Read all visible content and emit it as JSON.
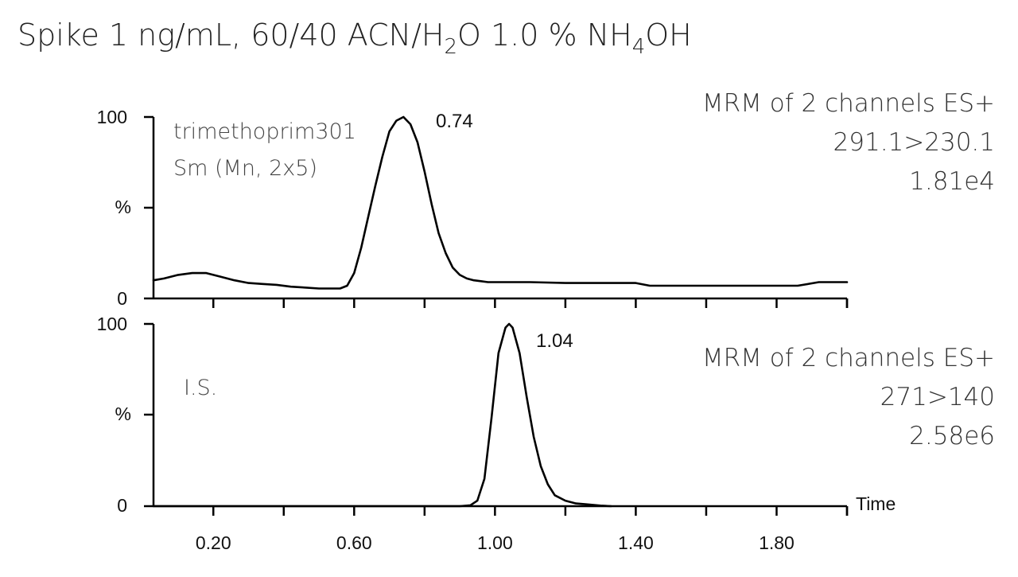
{
  "title": {
    "prefix": "Spike 1 ng/mL, 60/40 ACN/H",
    "sub1": "2",
    "mid": "O 1.0 % NH",
    "sub2": "4",
    "suffix": "OH"
  },
  "x_axis_label": "Time",
  "chart_data": [
    {
      "type": "line",
      "panel": "top",
      "annotation_lines": [
        "trimethoprim301",
        "Sm (Mn, 2x5)"
      ],
      "info_lines": [
        "MRM of 2 channels ES+",
        "291.1>230.1",
        "1.81e4"
      ],
      "y_tick_labels": [
        "100",
        "%",
        "0"
      ],
      "peak_label": "0.74",
      "peak_x": 0.74,
      "xlim": [
        0.03,
        2.0
      ],
      "ylim": [
        0,
        100
      ],
      "x_ticks": [
        0.2,
        0.6,
        1.0,
        1.4,
        1.8
      ],
      "x_tick_labels": [
        "0.20",
        "0.60",
        "1.00",
        "1.40",
        "1.80"
      ],
      "series": [
        {
          "x": [
            0.03,
            0.06,
            0.1,
            0.14,
            0.18,
            0.22,
            0.26,
            0.3,
            0.34,
            0.38,
            0.42,
            0.46,
            0.5,
            0.54,
            0.56,
            0.58,
            0.6,
            0.62,
            0.64,
            0.66,
            0.68,
            0.7,
            0.72,
            0.74,
            0.76,
            0.78,
            0.8,
            0.82,
            0.84,
            0.86,
            0.88,
            0.9,
            0.92,
            0.94,
            0.96,
            0.98,
            1.02,
            1.1,
            1.2,
            1.3,
            1.4,
            1.44,
            1.5,
            1.6,
            1.7,
            1.8,
            1.86,
            1.92,
            1.96,
            2.0
          ],
          "y": [
            10,
            11,
            13,
            14,
            14,
            12,
            10,
            8.5,
            8,
            7.5,
            6.5,
            6,
            5.5,
            5.5,
            5.5,
            7,
            14,
            28,
            45,
            62,
            78,
            92,
            98,
            100,
            96,
            86,
            70,
            52,
            36,
            25,
            17,
            13,
            11,
            10,
            9.5,
            9,
            9,
            9,
            8.5,
            8.5,
            8.5,
            7,
            7,
            7,
            7,
            7,
            7,
            9,
            9,
            9
          ]
        }
      ]
    },
    {
      "type": "line",
      "panel": "bottom",
      "annotation_lines": [
        "I.S."
      ],
      "info_lines": [
        "MRM of 2 channels ES+",
        "271>140",
        "2.58e6"
      ],
      "y_tick_labels": [
        "100",
        "%",
        "0"
      ],
      "peak_label": "1.04",
      "peak_x": 1.04,
      "xlim": [
        0.03,
        2.0
      ],
      "ylim": [
        0,
        100
      ],
      "x_ticks": [
        0.2,
        0.6,
        1.0,
        1.4,
        1.8
      ],
      "x_tick_labels": [
        "0.20",
        "0.60",
        "1.00",
        "1.40",
        "1.80"
      ],
      "series": [
        {
          "x": [
            0.03,
            0.9,
            0.93,
            0.95,
            0.97,
            0.99,
            1.01,
            1.03,
            1.04,
            1.05,
            1.07,
            1.09,
            1.11,
            1.13,
            1.15,
            1.17,
            1.2,
            1.23,
            1.26,
            1.3,
            1.33
          ],
          "y": [
            0,
            0,
            0.5,
            3,
            15,
            48,
            84,
            98,
            100,
            98,
            84,
            60,
            38,
            22,
            12,
            6,
            3,
            1.5,
            1,
            0.3,
            0
          ]
        }
      ]
    }
  ]
}
